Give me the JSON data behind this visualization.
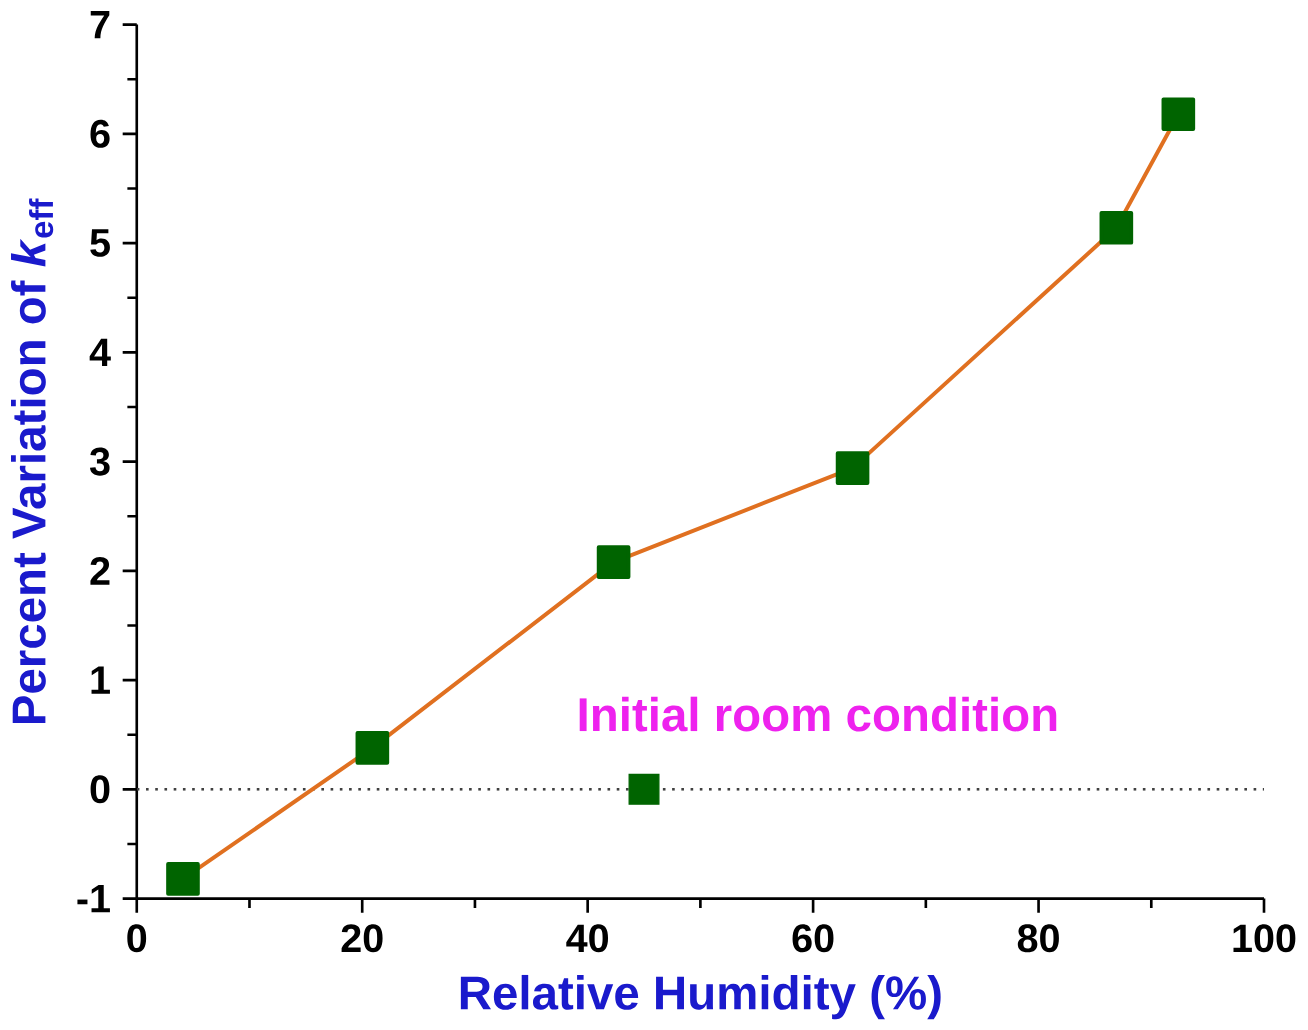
{
  "chart_data": {
    "type": "line",
    "xlabel": "Relative Humidity (%)",
    "ylabel": "Percent Variation of *k*$_{eff}$",
    "xlim": [
      0,
      100
    ],
    "xticks": [
      0,
      20,
      40,
      60,
      80,
      100
    ],
    "ylim": [
      -1,
      7
    ],
    "yticks": [
      -1,
      0,
      1,
      2,
      3,
      4,
      5,
      6,
      7
    ],
    "marker": "square",
    "grid": false,
    "series": [
      {
        "color": "#e07020",
        "x": [
          4.1,
          20.9,
          42.3,
          63.5,
          86.9,
          92.4
        ],
        "values": [
          -0.82,
          0.38,
          2.08,
          2.94,
          5.14,
          6.18
        ]
      },
      {
        "type": "scatter",
        "color": "#006400",
        "x": [
          45
        ],
        "values": [
          0
        ]
      }
    ],
    "ref_lines": [
      {
        "axis": "y",
        "value": 0,
        "line_style": "dotted",
        "color": "#404040"
      }
    ],
    "annotations": [
      {
        "text": "Initial room condition",
        "x": 45,
        "y": 0
      }
    ]
  }
}
